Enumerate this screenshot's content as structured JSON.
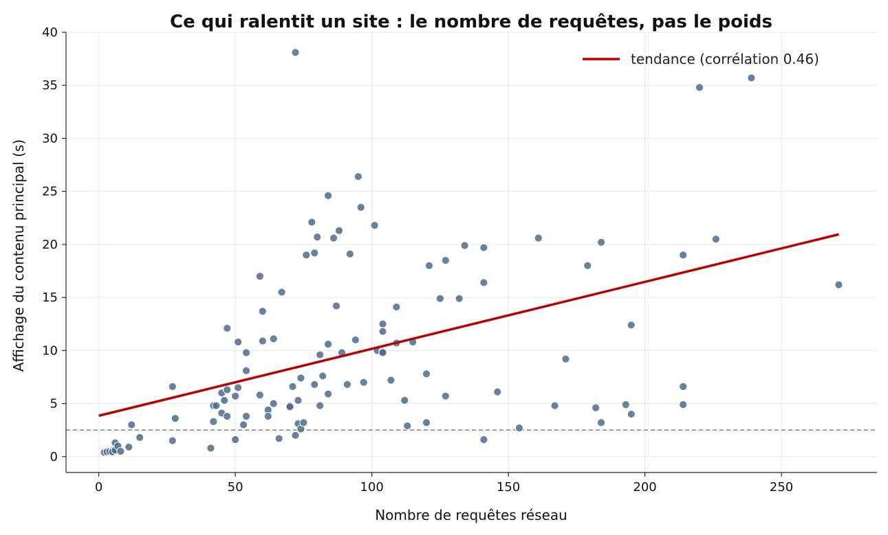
{
  "chart_data": {
    "type": "scatter",
    "title": "Ce qui ralentit un site : le nombre de requêtes, pas le poids",
    "xlabel": "Nombre de requêtes réseau",
    "ylabel": "Affichage du contenu principal (s)",
    "xlim": [
      -12,
      285
    ],
    "ylim": [
      -1.5,
      40
    ],
    "xticks": [
      0,
      50,
      100,
      150,
      200,
      250
    ],
    "yticks": [
      0,
      5,
      10,
      15,
      20,
      25,
      30,
      35,
      40
    ],
    "grid": true,
    "legend_position": "top-right",
    "reference_line": {
      "y": 2.5,
      "style": "dashed",
      "color": "#888888"
    },
    "trend": {
      "label": "tendance (corrélation 0.46)",
      "x": [
        0,
        271
      ],
      "y": [
        3.85,
        20.95
      ],
      "color": "#bb0000"
    },
    "point_color": "#4d6b8c",
    "points": [
      [
        2,
        0.4
      ],
      [
        3,
        0.5
      ],
      [
        3,
        0.45
      ],
      [
        4,
        0.5
      ],
      [
        4,
        0.5
      ],
      [
        5,
        0.55
      ],
      [
        5,
        0.45
      ],
      [
        6,
        0.6
      ],
      [
        6,
        1.3
      ],
      [
        7,
        1.0
      ],
      [
        8,
        0.5
      ],
      [
        11,
        0.9
      ],
      [
        12,
        3.0
      ],
      [
        15,
        1.8
      ],
      [
        27,
        6.6
      ],
      [
        27,
        1.5
      ],
      [
        28,
        3.6
      ],
      [
        41,
        0.8
      ],
      [
        42,
        4.8
      ],
      [
        42,
        3.3
      ],
      [
        43,
        4.8
      ],
      [
        45,
        4.1
      ],
      [
        45,
        6.0
      ],
      [
        46,
        5.3
      ],
      [
        47,
        6.3
      ],
      [
        47,
        3.8
      ],
      [
        47,
        12.1
      ],
      [
        50,
        1.6
      ],
      [
        50,
        5.7
      ],
      [
        51,
        6.5
      ],
      [
        51,
        10.8
      ],
      [
        53,
        3.0
      ],
      [
        54,
        3.8
      ],
      [
        54,
        9.8
      ],
      [
        54,
        8.1
      ],
      [
        59,
        17.0
      ],
      [
        59,
        5.8
      ],
      [
        60,
        13.7
      ],
      [
        60,
        10.9
      ],
      [
        62,
        4.4
      ],
      [
        62,
        3.8
      ],
      [
        64,
        11.1
      ],
      [
        64,
        5.0
      ],
      [
        66,
        1.7
      ],
      [
        67,
        15.5
      ],
      [
        70,
        4.8
      ],
      [
        70,
        4.7
      ],
      [
        71,
        6.6
      ],
      [
        72,
        38.1
      ],
      [
        72,
        2.0
      ],
      [
        73,
        3.1
      ],
      [
        73,
        5.3
      ],
      [
        74,
        2.6
      ],
      [
        74,
        7.4
      ],
      [
        75,
        3.2
      ],
      [
        76,
        19.0
      ],
      [
        78,
        22.1
      ],
      [
        79,
        19.2
      ],
      [
        79,
        6.8
      ],
      [
        80,
        20.7
      ],
      [
        81,
        9.6
      ],
      [
        81,
        4.8
      ],
      [
        82,
        7.6
      ],
      [
        84,
        24.6
      ],
      [
        84,
        10.6
      ],
      [
        84,
        5.9
      ],
      [
        86,
        20.6
      ],
      [
        87,
        14.2
      ],
      [
        88,
        21.3
      ],
      [
        89,
        9.8
      ],
      [
        91,
        6.8
      ],
      [
        92,
        19.1
      ],
      [
        94,
        11.0
      ],
      [
        95,
        26.4
      ],
      [
        96,
        23.5
      ],
      [
        97,
        7.0
      ],
      [
        101,
        21.8
      ],
      [
        102,
        10.0
      ],
      [
        104,
        12.5
      ],
      [
        104,
        11.8
      ],
      [
        104,
        9.9
      ],
      [
        104,
        9.8
      ],
      [
        107,
        7.2
      ],
      [
        109,
        10.7
      ],
      [
        109,
        14.1
      ],
      [
        112,
        5.3
      ],
      [
        113,
        2.9
      ],
      [
        115,
        10.8
      ],
      [
        120,
        7.8
      ],
      [
        120,
        3.2
      ],
      [
        121,
        18.0
      ],
      [
        125,
        14.9
      ],
      [
        127,
        18.5
      ],
      [
        127,
        5.7
      ],
      [
        132,
        14.9
      ],
      [
        134,
        19.9
      ],
      [
        141,
        19.7
      ],
      [
        141,
        16.4
      ],
      [
        141,
        1.6
      ],
      [
        146,
        6.1
      ],
      [
        154,
        2.7
      ],
      [
        161,
        20.6
      ],
      [
        167,
        4.8
      ],
      [
        171,
        9.2
      ],
      [
        179,
        18.0
      ],
      [
        182,
        4.6
      ],
      [
        184,
        20.2
      ],
      [
        184,
        3.2
      ],
      [
        193,
        4.9
      ],
      [
        195,
        12.4
      ],
      [
        195,
        4.0
      ],
      [
        214,
        19.0
      ],
      [
        214,
        6.6
      ],
      [
        214,
        4.9
      ],
      [
        220,
        34.8
      ],
      [
        226,
        20.5
      ],
      [
        239,
        35.7
      ],
      [
        271,
        16.2
      ]
    ]
  }
}
